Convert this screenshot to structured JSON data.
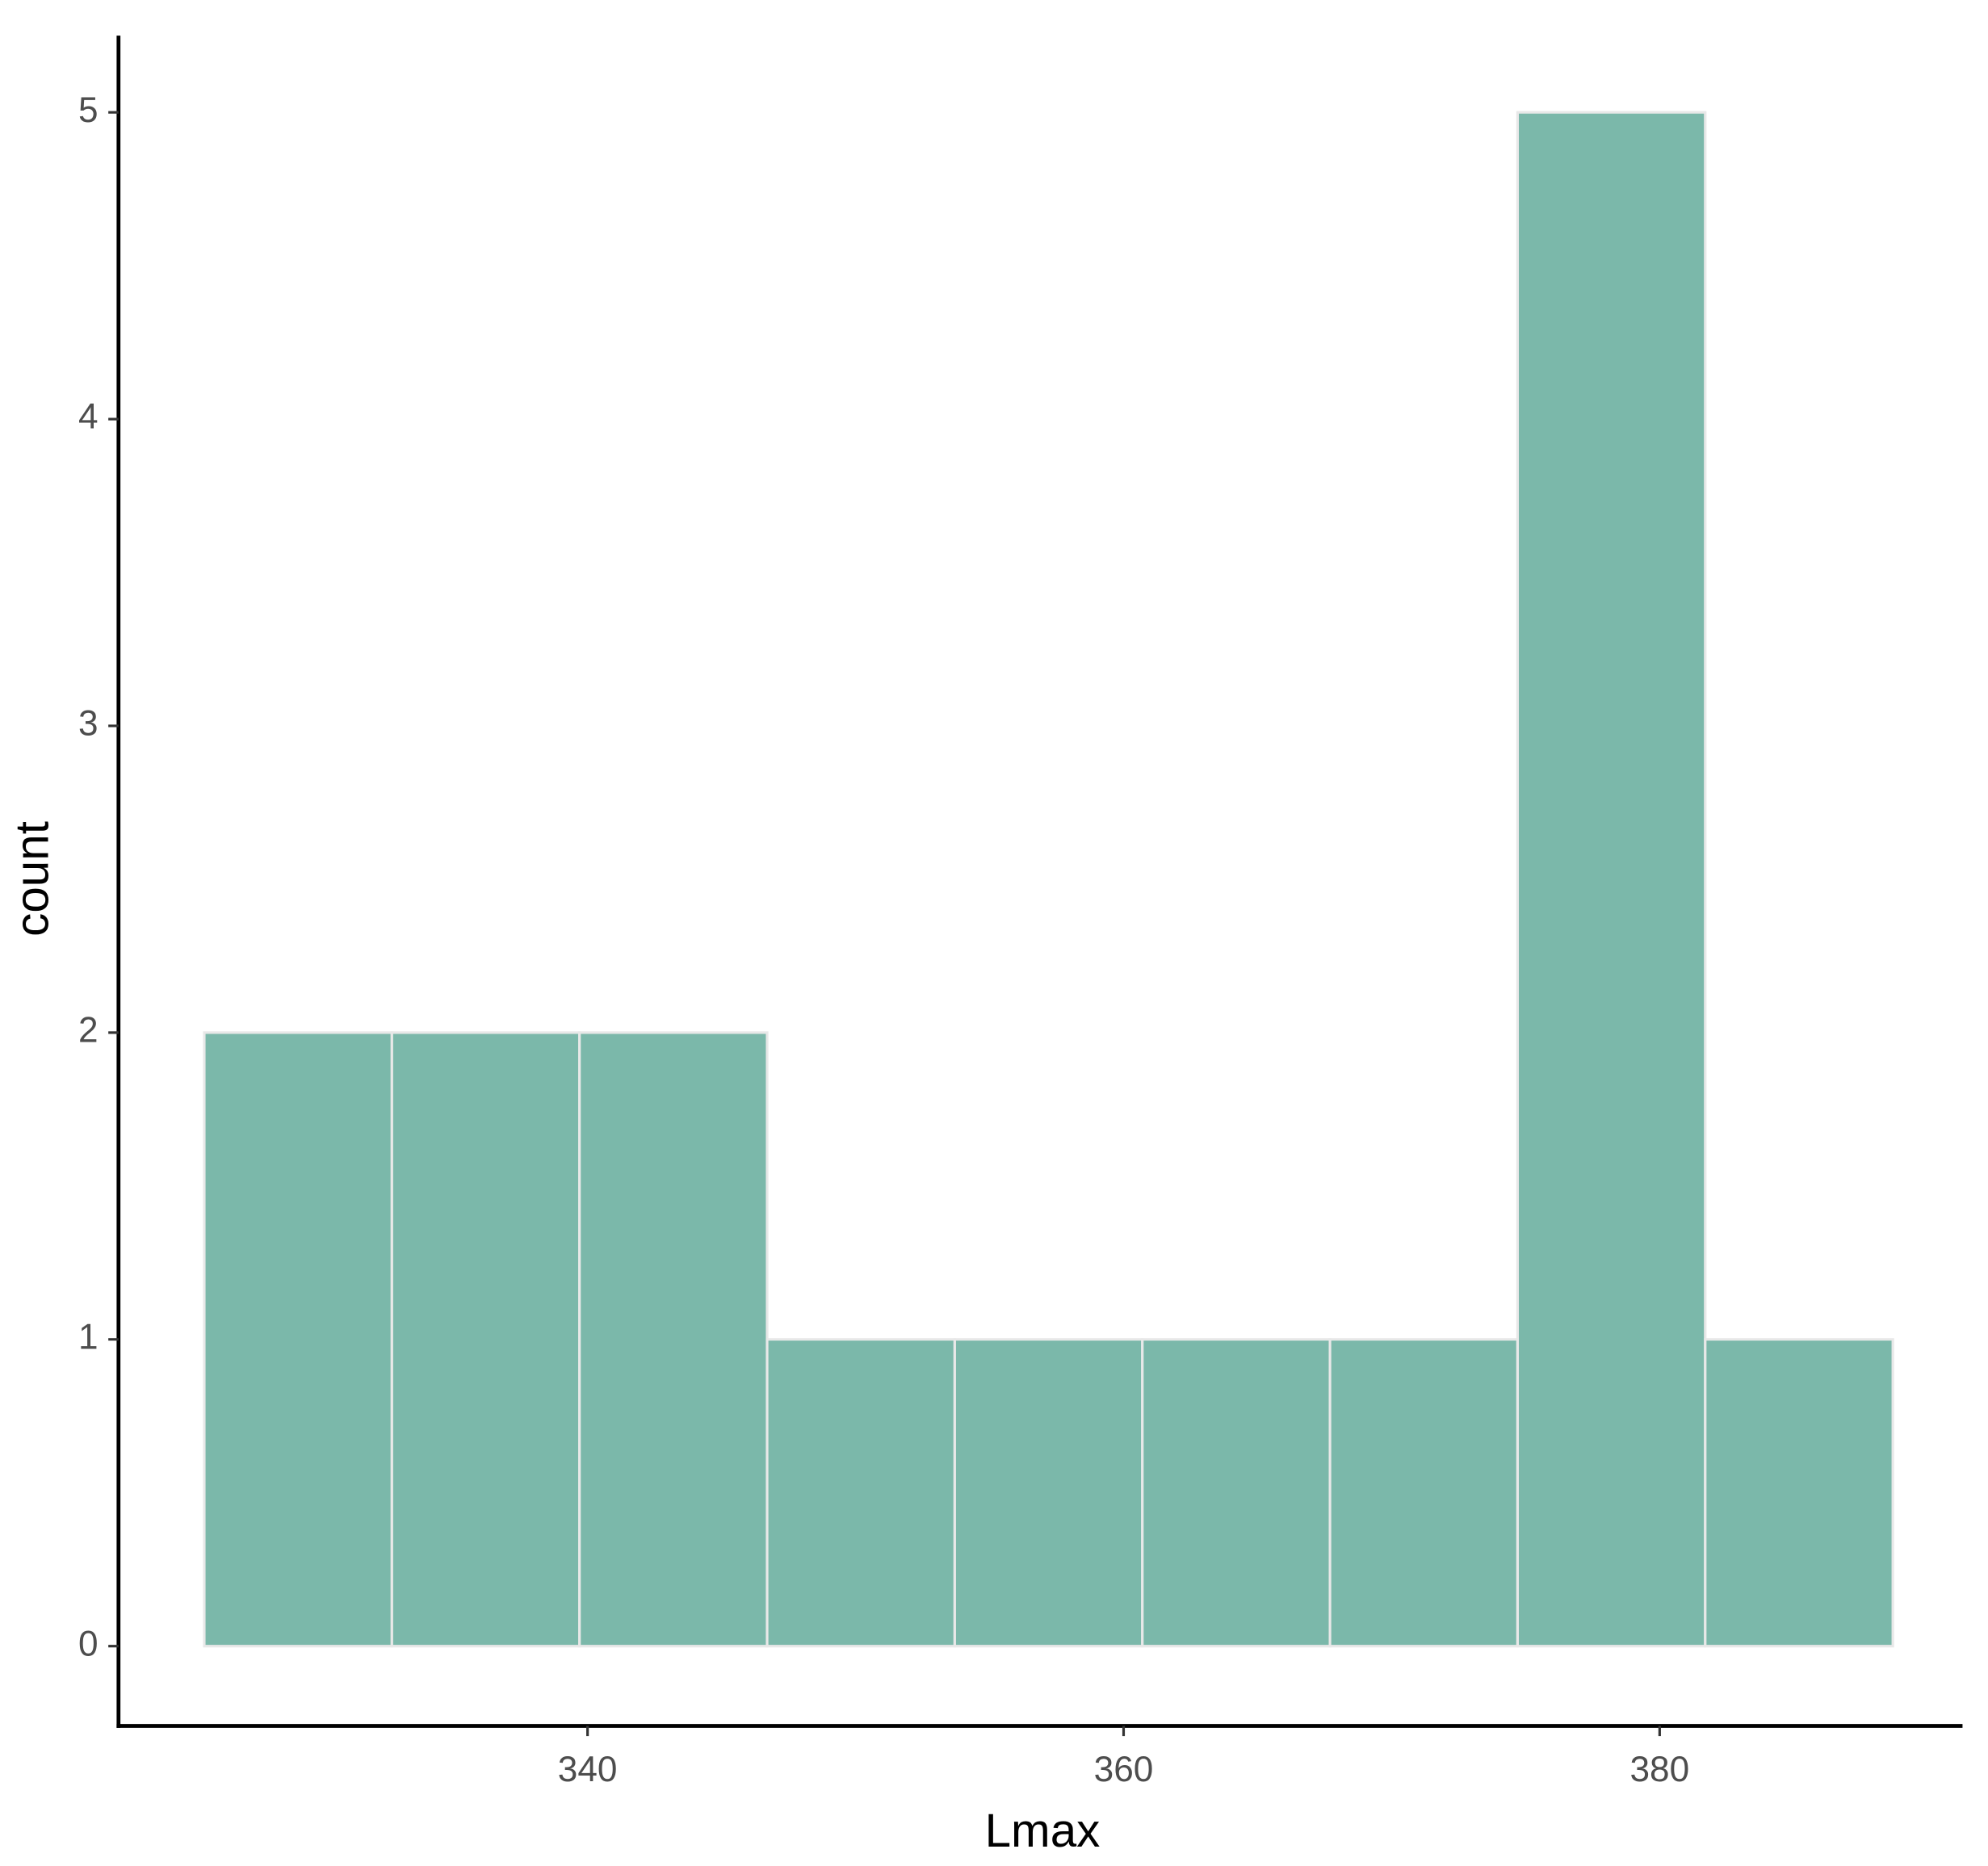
{
  "chart_data": {
    "type": "histogram",
    "x_label": "Lmax",
    "y_label": "count",
    "bins": [
      325.7,
      332.7,
      339.7,
      346.7,
      353.7,
      360.7,
      367.7,
      374.7,
      381.7,
      388.7
    ],
    "values": [
      2,
      2,
      2,
      1,
      1,
      1,
      1,
      5,
      1
    ],
    "color": "#7bb8aa",
    "edge_color": "#e8e8e8",
    "xlim": [
      322.5,
      391.3
    ],
    "ylim": [
      -0.26,
      5.25
    ],
    "xticks": [
      340,
      360,
      380
    ],
    "yticks": [
      0,
      1,
      2,
      3,
      4,
      5
    ]
  }
}
